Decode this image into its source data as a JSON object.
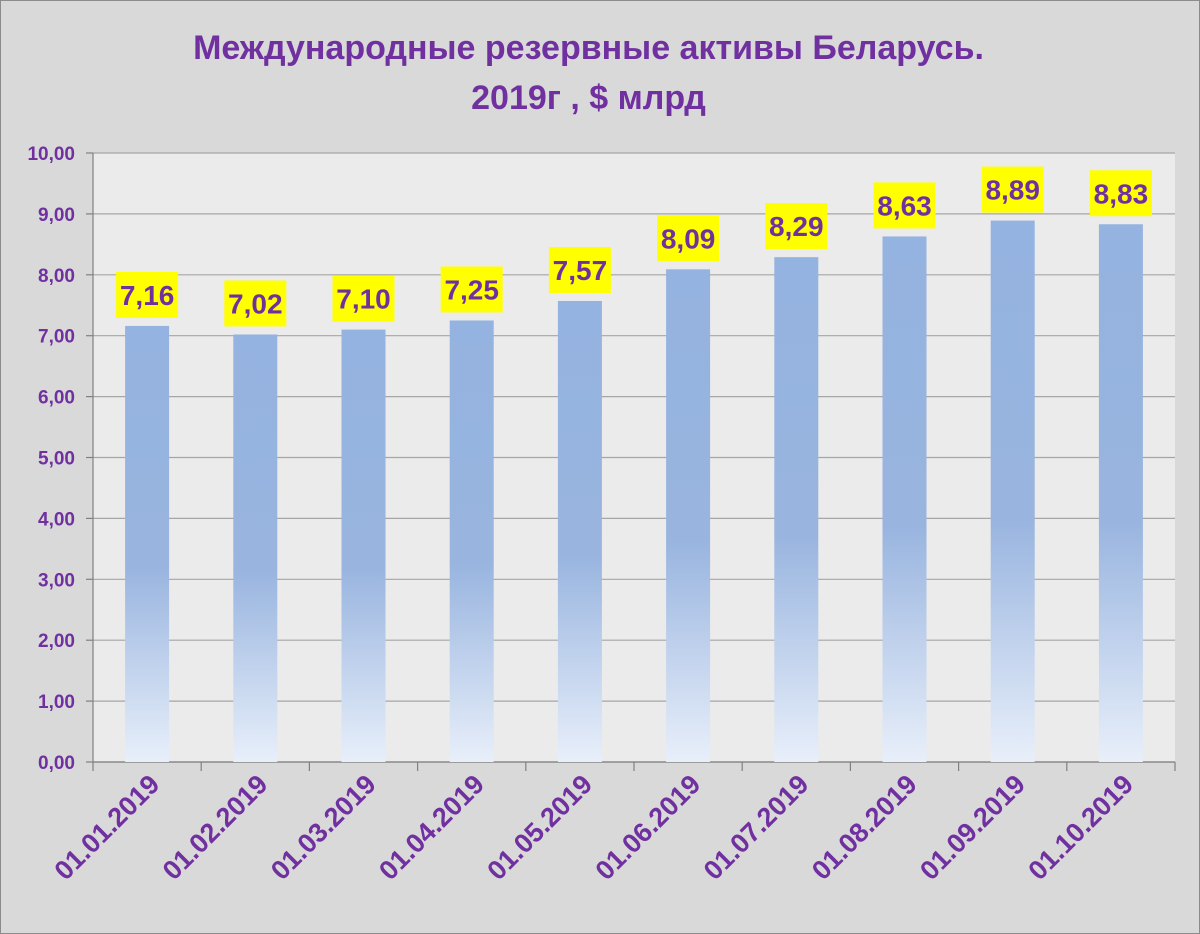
{
  "chart_data": {
    "type": "bar",
    "title_lines": [
      "Международные резервные активы Беларусь.",
      "2019г , $ млрд"
    ],
    "categories": [
      "01.01.2019",
      "01.02.2019",
      "01.03.2019",
      "01.04.2019",
      "01.05.2019",
      "01.06.2019",
      "01.07.2019",
      "01.08.2019",
      "01.09.2019",
      "01.10.2019"
    ],
    "values": [
      7.16,
      7.02,
      7.1,
      7.25,
      7.57,
      8.09,
      8.29,
      8.63,
      8.89,
      8.83
    ],
    "data_labels": [
      "7,16",
      "7,02",
      "7,10",
      "7,25",
      "7,57",
      "8,09",
      "8,29",
      "8,63",
      "8,89",
      "8,83"
    ],
    "y_ticks": [
      "0,00",
      "1,00",
      "2,00",
      "3,00",
      "4,00",
      "5,00",
      "6,00",
      "7,00",
      "8,00",
      "9,00",
      "10,00"
    ],
    "ylim": [
      0,
      10
    ],
    "grid": true,
    "legend": "none",
    "xlabel": "",
    "ylabel": "",
    "colors": {
      "title": "#7030a0",
      "bar_top": "#95b3e0",
      "bar_bottom": "#e8effa",
      "label_bg": "#ffff00",
      "plot_bg": "#ebebeb",
      "page_bg": "#d9d9d9",
      "grid": "#a6a6a6"
    }
  }
}
